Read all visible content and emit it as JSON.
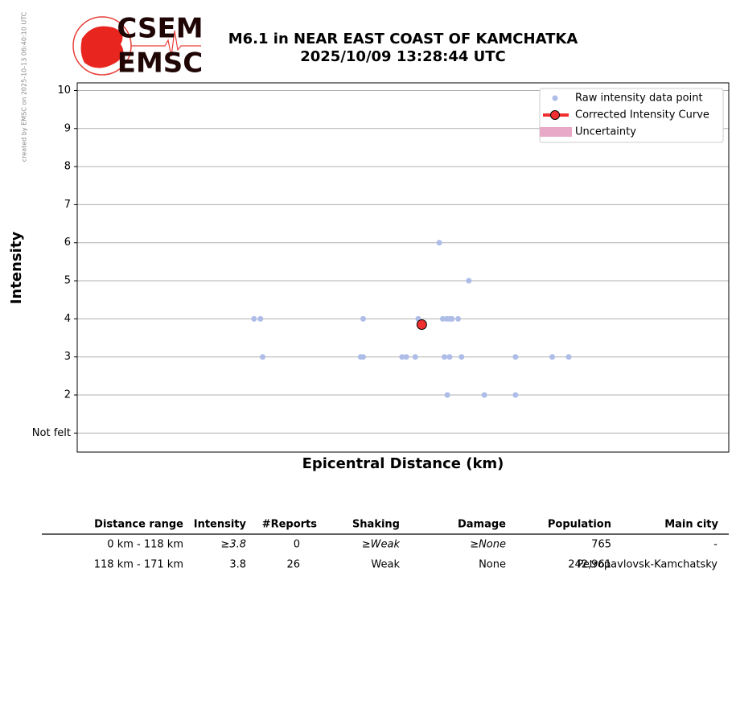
{
  "credit": "created by EMSC on 2025-10-13 06:40:10 UTC",
  "logo": {
    "top": "CSEM",
    "bottom": "EMSC"
  },
  "chart_data": {
    "type": "scatter",
    "title": "M6.1 in NEAR EAST COAST OF KAMCHATKA",
    "subtitle": "2025/10/09 13:28:44 UTC",
    "x_label": "Epicentral Distance (km)",
    "y_label": "Intensity",
    "x_scale": "log",
    "xlim": [
      95.8,
      206.5
    ],
    "ylim": [
      0.5,
      10.2
    ],
    "yticks": [
      {
        "value": 1,
        "label": "Not felt"
      },
      2,
      3,
      4,
      5,
      6,
      7,
      8,
      9,
      10
    ],
    "grid": true,
    "legend": "upper right",
    "series": [
      {
        "name": "Raw intensity data point",
        "color": "#aebce8",
        "x": [
          118,
          118.9,
          119.2,
          134.2,
          133.8,
          134.2,
          140.5,
          141.2,
          142.7,
          143.2,
          146.8,
          147.4,
          147.7,
          148.1,
          148.2,
          148.6,
          148.6,
          149.0,
          150.1,
          150.7,
          152.0,
          154.8,
          160.6,
          160.6,
          167.7,
          171.0
        ],
        "values": [
          4,
          4,
          3,
          4,
          3,
          3,
          3,
          3,
          3,
          4,
          6,
          4,
          3,
          4,
          2,
          3,
          4,
          4,
          4,
          3,
          5,
          2,
          3,
          2,
          3,
          3
        ]
      },
      {
        "name": "Corrected Intensity Curve",
        "color": "#f03030",
        "x": [
          143.8
        ],
        "values": [
          3.85
        ]
      },
      {
        "name": "Uncertainty",
        "color": "#e8a8c8"
      }
    ]
  },
  "table": {
    "columns": [
      "Distance range",
      "Intensity",
      "#Reports",
      "Shaking",
      "Damage",
      "Population",
      "Main city"
    ],
    "rows": [
      [
        "0 km -  118 km",
        "≥3.8",
        "0",
        "≥Weak",
        "≥None",
        "765",
        "-"
      ],
      [
        "118 km -  171 km",
        "3.8",
        "26",
        "Weak",
        "None",
        "242,961",
        "Petropavlovsk-Kamchatsky"
      ]
    ]
  }
}
